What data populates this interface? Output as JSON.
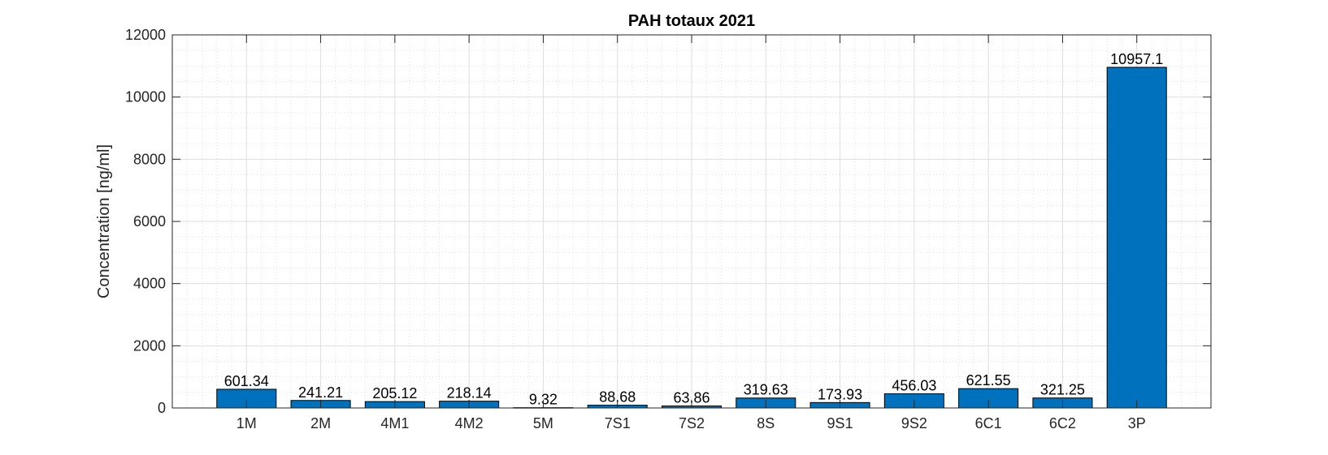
{
  "chart_data": {
    "type": "bar",
    "title": "PAH totaux 2021",
    "xlabel": "",
    "ylabel": "Concentration [ng/ml]",
    "categories": [
      "1M",
      "2M",
      "4M1",
      "4M2",
      "5M",
      "7S1",
      "7S2",
      "8S",
      "9S1",
      "9S2",
      "6C1",
      "6C2",
      "3P"
    ],
    "values": [
      601.34,
      241.21,
      205.12,
      218.14,
      9.32,
      88.68,
      63.86,
      319.63,
      173.93,
      456.03,
      621.55,
      321.25,
      10957.1
    ],
    "data_labels": [
      "601.34",
      "241.21",
      "205.12",
      "218.14",
      "9.32",
      "88.68",
      "63.86",
      "319.63",
      "173.93",
      "456.03",
      "621.55",
      "321.25",
      "10957.1"
    ],
    "ylim": [
      0,
      12000
    ],
    "yticks": [
      0,
      2000,
      4000,
      6000,
      8000,
      10000,
      12000
    ],
    "ytick_labels": [
      "0",
      "2000",
      "4000",
      "6000",
      "8000",
      "10000",
      "12000"
    ],
    "xlim": [
      0,
      14
    ],
    "grid": true,
    "minor_grid": true,
    "bar_color": "#0072bd",
    "edge_color": "#000000",
    "grid_color": "#dedede",
    "axis_color": "#262626"
  }
}
